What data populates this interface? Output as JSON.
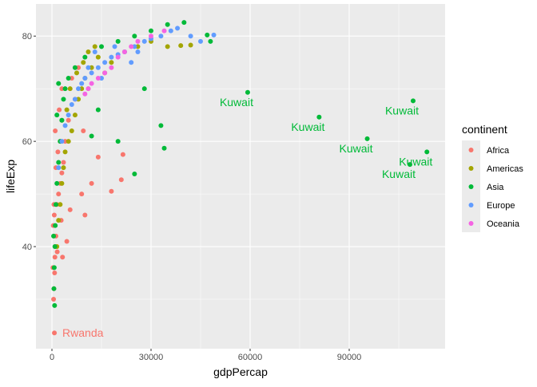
{
  "chart_data": {
    "type": "scatter",
    "xlabel": "gdpPercap",
    "ylabel": "lifeExp",
    "xlim": [
      -4839,
      119032
    ],
    "ylim": [
      20.6,
      86.1
    ],
    "xticks": [
      0,
      30000,
      60000,
      90000
    ],
    "yticks": [
      40,
      60,
      80
    ],
    "xtick_labels": [
      "0",
      "30000",
      "60000",
      "90000"
    ],
    "ytick_labels": [
      "40",
      "60",
      "80"
    ],
    "grid": true,
    "legend_position": "right",
    "legend_title": "continent",
    "series": [
      {
        "name": "Africa",
        "color": "#F8766D",
        "points": [
          [
            737,
            23.6
          ],
          [
            500,
            30
          ],
          [
            600,
            32
          ],
          [
            800,
            35
          ],
          [
            900,
            38
          ],
          [
            1000,
            40
          ],
          [
            1200,
            42
          ],
          [
            400,
            44
          ],
          [
            700,
            46
          ],
          [
            1500,
            48
          ],
          [
            2000,
            50
          ],
          [
            2500,
            52
          ],
          [
            3000,
            54
          ],
          [
            3500,
            56
          ],
          [
            1800,
            58
          ],
          [
            4000,
            60
          ],
          [
            1000,
            62
          ],
          [
            5000,
            64
          ],
          [
            2200,
            66
          ],
          [
            7000,
            68
          ],
          [
            3000,
            70
          ],
          [
            6000,
            72
          ],
          [
            8000,
            74
          ],
          [
            300,
            36
          ],
          [
            1600,
            39
          ],
          [
            2800,
            45
          ],
          [
            5500,
            47
          ],
          [
            9000,
            50
          ],
          [
            12000,
            52
          ],
          [
            14000,
            57
          ],
          [
            18000,
            50.5
          ],
          [
            21000,
            52.7
          ],
          [
            21500,
            57.5
          ],
          [
            10000,
            46
          ],
          [
            4500,
            41
          ],
          [
            3200,
            38
          ],
          [
            1200,
            55
          ],
          [
            600,
            48
          ],
          [
            11000,
            70
          ],
          [
            9500,
            62
          ]
        ]
      },
      {
        "name": "Americas",
        "color": "#A3A500",
        "points": [
          [
            1500,
            40
          ],
          [
            2000,
            45
          ],
          [
            2500,
            48
          ],
          [
            3000,
            52
          ],
          [
            3500,
            55
          ],
          [
            4000,
            58
          ],
          [
            5000,
            60
          ],
          [
            6000,
            62
          ],
          [
            7000,
            65
          ],
          [
            8000,
            68
          ],
          [
            9000,
            70
          ],
          [
            10000,
            72
          ],
          [
            12000,
            74
          ],
          [
            14000,
            76
          ],
          [
            16000,
            73
          ],
          [
            18000,
            75
          ],
          [
            22000,
            77
          ],
          [
            26000,
            78
          ],
          [
            30000,
            79
          ],
          [
            35000,
            78
          ],
          [
            39000,
            78.2
          ],
          [
            42000,
            78.3
          ],
          [
            2500,
            60
          ],
          [
            5500,
            70
          ],
          [
            7500,
            73
          ],
          [
            9500,
            75
          ],
          [
            11000,
            77
          ],
          [
            13000,
            78
          ],
          [
            4500,
            66
          ],
          [
            3000,
            64
          ]
        ]
      },
      {
        "name": "Asia",
        "color": "#00BA38",
        "points": [
          [
            800,
            28.8
          ],
          [
            600,
            32
          ],
          [
            700,
            36
          ],
          [
            900,
            40
          ],
          [
            1000,
            44
          ],
          [
            1200,
            48
          ],
          [
            1500,
            52
          ],
          [
            2000,
            56
          ],
          [
            2500,
            60
          ],
          [
            3000,
            64
          ],
          [
            3500,
            68
          ],
          [
            4000,
            70
          ],
          [
            5000,
            72
          ],
          [
            7000,
            74
          ],
          [
            10000,
            76
          ],
          [
            15000,
            78
          ],
          [
            20000,
            79
          ],
          [
            25000,
            80
          ],
          [
            30000,
            81
          ],
          [
            35000,
            82.2
          ],
          [
            40000,
            82.6
          ],
          [
            47000,
            80.2
          ],
          [
            48000,
            79
          ],
          [
            28000,
            70
          ],
          [
            33000,
            63
          ],
          [
            34000,
            58.7
          ],
          [
            25000,
            53.8
          ],
          [
            20000,
            60
          ],
          [
            14000,
            66
          ],
          [
            12000,
            61
          ],
          [
            59265,
            69.3
          ],
          [
            80895,
            64.6
          ],
          [
            95458,
            60.5
          ],
          [
            109348,
            67.7
          ],
          [
            108382,
            55.6
          ],
          [
            113523,
            58.0
          ],
          [
            2000,
            71
          ],
          [
            1500,
            65
          ],
          [
            500,
            42
          ]
        ]
      },
      {
        "name": "Europe",
        "color": "#619CFF",
        "points": [
          [
            2000,
            55
          ],
          [
            3000,
            60
          ],
          [
            4000,
            63
          ],
          [
            5000,
            65
          ],
          [
            6000,
            67
          ],
          [
            7000,
            68
          ],
          [
            8000,
            70
          ],
          [
            9000,
            71
          ],
          [
            10000,
            72
          ],
          [
            12000,
            73
          ],
          [
            14000,
            74
          ],
          [
            16000,
            75
          ],
          [
            18000,
            76
          ],
          [
            20000,
            76.5
          ],
          [
            22000,
            77
          ],
          [
            25000,
            78
          ],
          [
            28000,
            79
          ],
          [
            30000,
            79.5
          ],
          [
            33000,
            80
          ],
          [
            36000,
            81
          ],
          [
            38000,
            81.5
          ],
          [
            42000,
            80
          ],
          [
            45000,
            79
          ],
          [
            49000,
            80.2
          ],
          [
            26000,
            77
          ],
          [
            15000,
            72
          ],
          [
            11000,
            74
          ],
          [
            13000,
            77
          ],
          [
            19000,
            78
          ],
          [
            24000,
            75
          ]
        ]
      },
      {
        "name": "Oceania",
        "color": "#F564E3",
        "points": [
          [
            10000,
            69
          ],
          [
            11000,
            70
          ],
          [
            12000,
            71
          ],
          [
            14000,
            72
          ],
          [
            16000,
            73
          ],
          [
            18000,
            74
          ],
          [
            20000,
            76
          ],
          [
            22000,
            77
          ],
          [
            24000,
            78
          ],
          [
            26000,
            79
          ],
          [
            30000,
            80
          ],
          [
            34000,
            81
          ]
        ]
      }
    ],
    "annotations": [
      {
        "label": "Kuwait",
        "x": 59265,
        "y": 69.3,
        "color": "#00BA38"
      },
      {
        "label": "Kuwait",
        "x": 80895,
        "y": 64.6,
        "color": "#00BA38"
      },
      {
        "label": "Kuwait",
        "x": 95458,
        "y": 60.5,
        "color": "#00BA38"
      },
      {
        "label": "Kuwait",
        "x": 109348,
        "y": 67.7,
        "color": "#00BA38"
      },
      {
        "label": "Kuwait",
        "x": 113523,
        "y": 58.0,
        "color": "#00BA38"
      },
      {
        "label": "Kuwait",
        "x": 108382,
        "y": 55.6,
        "color": "#00BA38"
      },
      {
        "label": "Rwanda",
        "x": 737,
        "y": 23.6,
        "color": "#F8766D"
      }
    ]
  }
}
